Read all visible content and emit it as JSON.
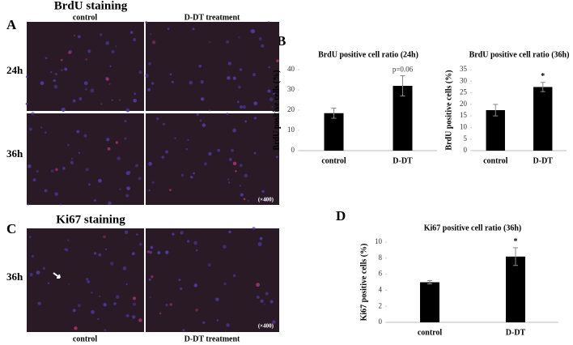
{
  "figure": {
    "panel_labels": [
      "A",
      "B",
      "C",
      "D"
    ],
    "brdu": {
      "title": "BrdU staining",
      "columns": [
        "control",
        "D-DT treatment"
      ],
      "rows": [
        "24h",
        "36h"
      ],
      "magnification": "(×400)"
    },
    "ki67": {
      "title": "Ki67 staining",
      "columns": [
        "control",
        "D-DT treatment"
      ],
      "rows": [
        "36h"
      ],
      "magnification": "(×400)"
    }
  },
  "chart_data": [
    {
      "type": "bar",
      "title": "BrdU positive cell ratio (24h)",
      "y_label": "BrdU positive cells (%)",
      "categories": [
        "control",
        "D-DT"
      ],
      "values": [
        18.5,
        32
      ],
      "errors": [
        2.5,
        5
      ],
      "color": "#000000",
      "ylim": [
        0,
        40
      ],
      "yticks": [
        0,
        10,
        20,
        30,
        40
      ],
      "annotation": "p=0.06"
    },
    {
      "type": "bar",
      "title": "BrdU positive cell ratio (36h)",
      "y_label": "BrdU positive cells (%)",
      "categories": [
        "control",
        "D-DT"
      ],
      "values": [
        17.5,
        27.5
      ],
      "errors": [
        2.5,
        2
      ],
      "color": "#000000",
      "ylim": [
        0,
        35
      ],
      "yticks": [
        0,
        5,
        10,
        15,
        20,
        25,
        30,
        35
      ],
      "annotation": "*"
    },
    {
      "type": "bar",
      "title": "Ki67 positive cell ratio (36h)",
      "y_label": "Ki67 positive cells (%)",
      "categories": [
        "control",
        "D-DT"
      ],
      "values": [
        5,
        8.2
      ],
      "errors": [
        0.2,
        1.1
      ],
      "color": "#000000",
      "ylim": [
        0,
        10
      ],
      "yticks": [
        0,
        2,
        4,
        6,
        8,
        10
      ],
      "annotation": "*"
    }
  ]
}
